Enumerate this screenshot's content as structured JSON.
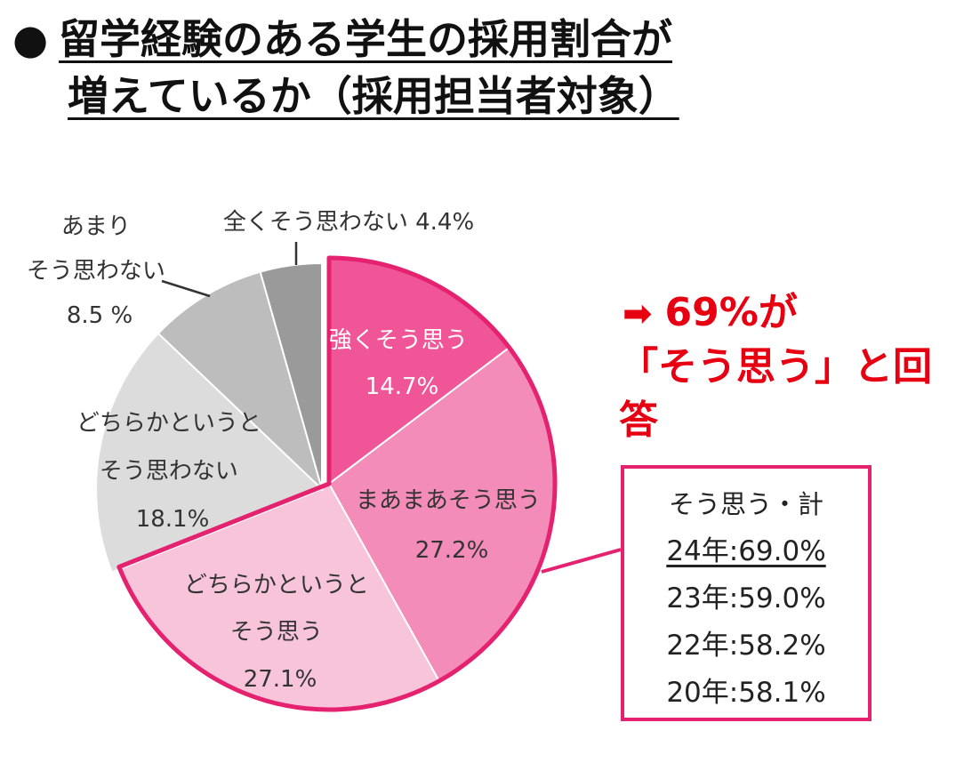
{
  "title": {
    "bullet": "●",
    "line1": "留学経験のある学生の採用割合が",
    "line2": "増えているか（採用担当者対象）"
  },
  "chart_data": {
    "type": "pie",
    "slices": [
      {
        "label": "強くそう思う",
        "value": 14.7,
        "display": "14.7%",
        "color": "#ef5597"
      },
      {
        "label": "まあまあそう思う",
        "value": 27.2,
        "display": "27.2%",
        "color": "#f38cb8"
      },
      {
        "label": "どちらかというとそう思う",
        "value": 27.1,
        "display": "27.1%",
        "color": "#f7c4da"
      },
      {
        "label": "どちらかというとそう思わない",
        "value": 18.1,
        "display": "18.1%",
        "color": "#dcdcdc"
      },
      {
        "label": "あまりそう思わない",
        "value": 8.5,
        "display": "8.5 %",
        "color": "#bdbdbd"
      },
      {
        "label": "全くそう思わない",
        "value": 4.4,
        "display": "4.4%",
        "color": "#9a9a9a"
      }
    ],
    "label_lines": {
      "slice0": [
        "強くそう思う",
        "14.7%"
      ],
      "slice1": [
        "まあまあそう思う",
        "27.2%"
      ],
      "slice2": [
        "どちらかというと",
        "そう思う",
        "27.1%"
      ],
      "slice3": [
        "どちらかというと",
        "そう思わない",
        "18.1%"
      ],
      "slice4": [
        "あまり",
        "そう思わない",
        "8.5 %"
      ],
      "slice5": [
        "全くそう思わない 4.4%"
      ]
    },
    "highlight_color": "#e5226f"
  },
  "callout": {
    "arrow": "➡",
    "line1": "69%が",
    "line2": "「そう思う」と回答",
    "color": "#e60012"
  },
  "summary": {
    "heading": "そう思う・計",
    "rows": [
      "24年:69.0%",
      "23年:59.0%",
      "22年:58.2%",
      "20年:58.1%"
    ]
  }
}
